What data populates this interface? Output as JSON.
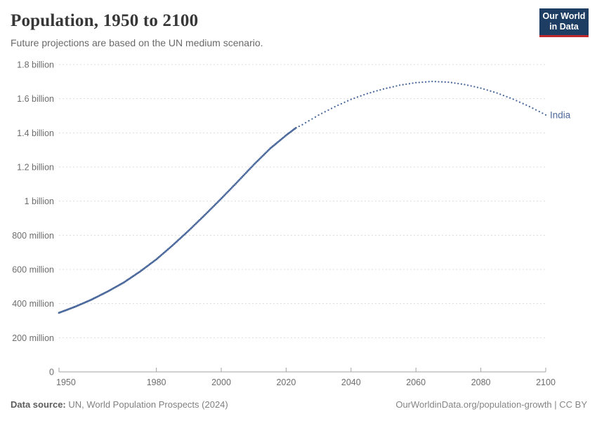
{
  "header": {
    "title": "Population, 1950 to 2100",
    "subtitle": "Future projections are based on the UN medium scenario."
  },
  "logo": {
    "line1": "Our World",
    "line2": "in Data",
    "bg_color": "#1d3d63",
    "accent_color": "#c0282d"
  },
  "footer": {
    "source_label": "Data source:",
    "source_text": " UN, World Population Prospects (2024)",
    "right_text": "OurWorldinData.org/population-growth | CC BY"
  },
  "chart_data": {
    "type": "line",
    "title": "Population, 1950 to 2100",
    "xlabel": "",
    "ylabel": "",
    "xlim": [
      1950,
      2100
    ],
    "ylim": [
      0,
      1.8
    ],
    "grid": "horizontal-dashed",
    "legend_position": "end-of-line-label",
    "x_ticks": [
      1950,
      1980,
      2000,
      2020,
      2040,
      2060,
      2080,
      2100
    ],
    "y_ticks": [
      {
        "value": 0,
        "label": "0"
      },
      {
        "value": 0.2,
        "label": "200 million"
      },
      {
        "value": 0.4,
        "label": "400 million"
      },
      {
        "value": 0.6,
        "label": "600 million"
      },
      {
        "value": 0.8,
        "label": "800 million"
      },
      {
        "value": 1.0,
        "label": "1 billion"
      },
      {
        "value": 1.2,
        "label": "1.2 billion"
      },
      {
        "value": 1.4,
        "label": "1.4 billion"
      },
      {
        "value": 1.6,
        "label": "1.6 billion"
      },
      {
        "value": 1.8,
        "label": "1.8 billion"
      }
    ],
    "projection_start_year": 2023,
    "series": [
      {
        "name": "India",
        "color": "#4c6a9c",
        "style_history": "solid-dots",
        "style_projection": "dotted",
        "years": [
          1950,
          1955,
          1960,
          1965,
          1970,
          1975,
          1980,
          1985,
          1990,
          1995,
          2000,
          2005,
          2010,
          2015,
          2020,
          2023,
          2025,
          2030,
          2035,
          2040,
          2045,
          2050,
          2055,
          2060,
          2065,
          2070,
          2075,
          2080,
          2085,
          2090,
          2095,
          2100
        ],
        "population_millions": [
          346,
          382,
          423,
          471,
          524,
          588,
          659,
          741,
          828,
          920,
          1015,
          1113,
          1213,
          1307,
          1386,
          1429,
          1448,
          1504,
          1553,
          1596,
          1630,
          1657,
          1679,
          1694,
          1701,
          1697,
          1683,
          1662,
          1633,
          1597,
          1554,
          1505
        ]
      }
    ]
  }
}
